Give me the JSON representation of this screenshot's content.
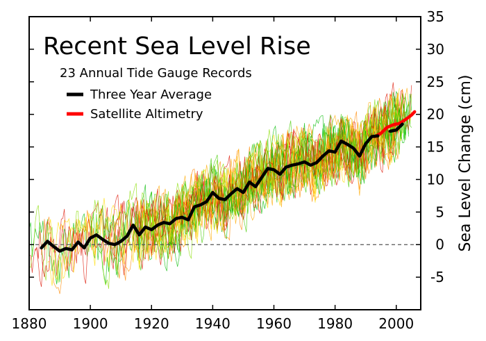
{
  "chart_data": {
    "type": "line",
    "title": "Recent Sea Level Rise",
    "subtitle": "23 Annual Tide Gauge Records",
    "xlabel": "",
    "ylabel": "Sea Level Change (cm)",
    "xlim": [
      1880,
      2008
    ],
    "ylim": [
      -10,
      35
    ],
    "x_ticks": [
      1880,
      1900,
      1920,
      1940,
      1960,
      1980,
      2000
    ],
    "y_ticks": [
      -5,
      0,
      5,
      10,
      15,
      20,
      25,
      30,
      35
    ],
    "y_axis_side": "right",
    "grid": false,
    "zero_reference_line": {
      "y": 0,
      "style": "dashed",
      "color": "#555555"
    },
    "legend": {
      "position": "top-left",
      "entries": [
        {
          "label": "Three Year Average",
          "color": "#000000"
        },
        {
          "label": "Satellite Altimetry",
          "color": "#ff0000"
        }
      ]
    },
    "series": [
      {
        "name": "Three Year Average",
        "color": "#000000",
        "x": [
          1884,
          1886,
          1888,
          1890,
          1892,
          1894,
          1896,
          1898,
          1900,
          1902,
          1904,
          1906,
          1908,
          1910,
          1912,
          1914,
          1916,
          1918,
          1920,
          1922,
          1924,
          1926,
          1928,
          1930,
          1932,
          1934,
          1936,
          1938,
          1940,
          1942,
          1944,
          1946,
          1948,
          1950,
          1952,
          1954,
          1956,
          1958,
          1960,
          1962,
          1964,
          1966,
          1968,
          1970,
          1972,
          1974,
          1976,
          1978,
          1980,
          1982,
          1984,
          1986,
          1988,
          1990,
          1992,
          1994
        ],
        "values": [
          -0.5,
          0.5,
          -0.3,
          -1.0,
          -0.6,
          -0.8,
          0.4,
          -0.5,
          1.0,
          1.5,
          0.8,
          0.2,
          0.0,
          0.5,
          1.3,
          3.0,
          1.5,
          2.7,
          2.3,
          3.0,
          3.4,
          3.2,
          4.0,
          4.2,
          3.8,
          5.8,
          6.1,
          6.6,
          8.0,
          7.1,
          6.9,
          7.8,
          8.6,
          8.0,
          9.6,
          8.9,
          10.3,
          11.7,
          11.5,
          10.8,
          11.9,
          12.2,
          12.4,
          12.7,
          12.2,
          12.6,
          13.6,
          14.4,
          14.2,
          15.9,
          15.4,
          14.8,
          13.6,
          15.5,
          16.6,
          16.7
        ]
      },
      {
        "name": "Satellite Altimetry",
        "color": "#ff0000",
        "x": [
          1993,
          1995,
          1997,
          1999,
          2001,
          2003,
          2005,
          2006
        ],
        "values": [
          16.6,
          17.1,
          18.0,
          18.4,
          18.6,
          19.2,
          19.9,
          20.4
        ]
      },
      {
        "name": "Three Year Average (recent)",
        "color": "#000000",
        "x": [
          1998,
          2000,
          2002
        ],
        "values": [
          17.4,
          17.6,
          18.5
        ]
      }
    ],
    "tide_gauge_records": {
      "count": 23,
      "colors": [
        "#00bb00",
        "#dd1100",
        "#ffdd00",
        "#88dd00",
        "#ff8800",
        "#ffaa00",
        "#44cc00"
      ],
      "x_range": [
        1880,
        2005
      ],
      "spread_cm": 8
    }
  }
}
